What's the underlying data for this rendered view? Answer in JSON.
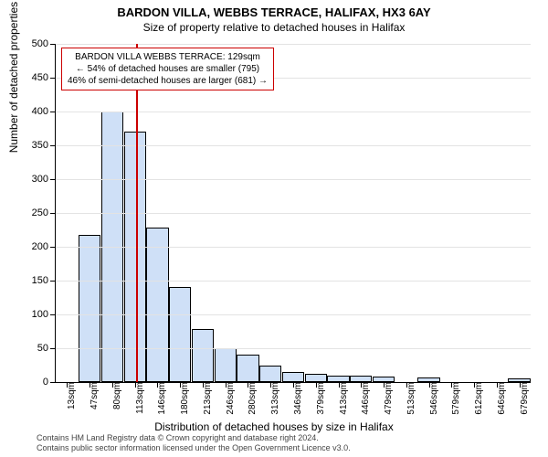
{
  "title": "BARDON VILLA, WEBBS TERRACE, HALIFAX, HX3 6AY",
  "subtitle": "Size of property relative to detached houses in Halifax",
  "ylabel": "Number of detached properties",
  "xlabel": "Distribution of detached houses by size in Halifax",
  "chart": {
    "type": "histogram",
    "bar_fill": "#cfe0f7",
    "bar_stroke": "#000000",
    "grid_color": "#e3e3e3",
    "marker_color": "#cc0000",
    "background": "#ffffff",
    "ylim_max": 500,
    "ytick_step": 50,
    "x_categories": [
      "13sqm",
      "47sqm",
      "80sqm",
      "113sqm",
      "146sqm",
      "180sqm",
      "213sqm",
      "246sqm",
      "280sqm",
      "313sqm",
      "346sqm",
      "379sqm",
      "413sqm",
      "446sqm",
      "479sqm",
      "513sqm",
      "546sqm",
      "579sqm",
      "612sqm",
      "646sqm",
      "679sqm"
    ],
    "values": [
      0,
      218,
      400,
      370,
      228,
      140,
      78,
      50,
      40,
      25,
      15,
      12,
      10,
      9,
      8,
      0,
      7,
      0,
      0,
      0,
      5
    ],
    "marker_x_sqm": 129,
    "x_min_sqm": 13,
    "x_max_sqm": 695
  },
  "callout": {
    "line1": "BARDON VILLA WEBBS TERRACE: 129sqm",
    "line2": "← 54% of detached houses are smaller (795)",
    "line3": "46% of semi-detached houses are larger (681) →"
  },
  "footer": {
    "line1": "Contains HM Land Registry data © Crown copyright and database right 2024.",
    "line2": "Contains public sector information licensed under the Open Government Licence v3.0."
  }
}
